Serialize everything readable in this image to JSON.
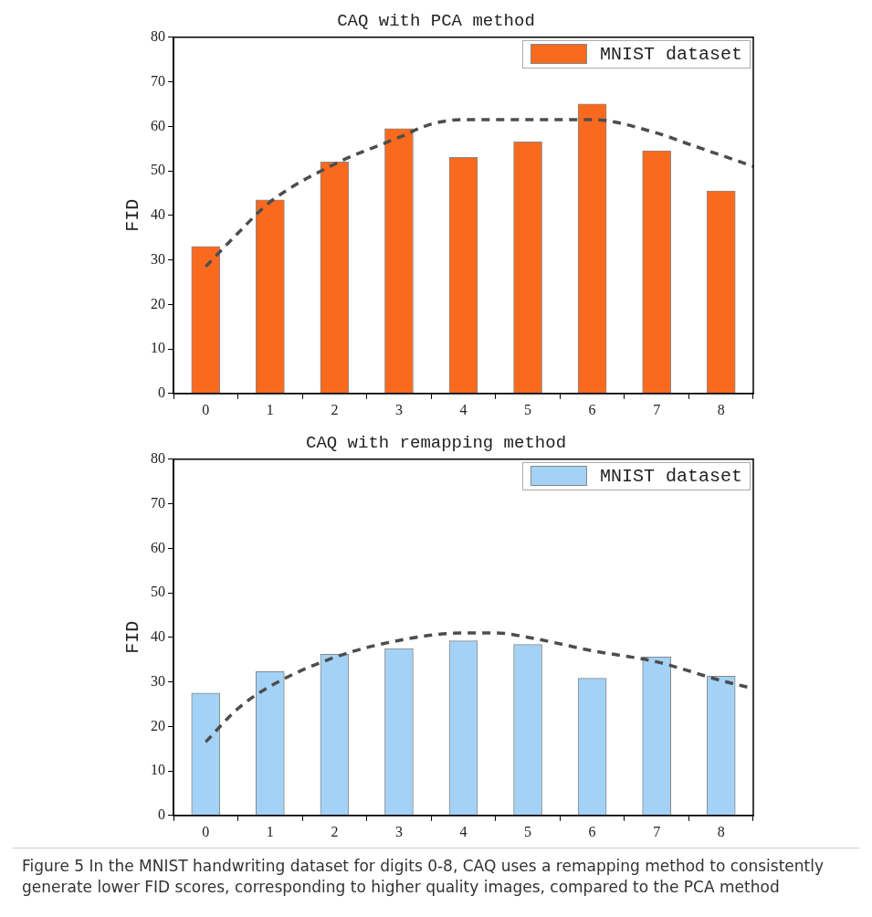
{
  "chart_data": [
    {
      "type": "bar",
      "title": "CAQ with PCA method",
      "ylabel": "FID",
      "x": [
        0,
        1,
        2,
        3,
        4,
        5,
        6,
        7,
        8
      ],
      "xlim": [
        -0.5,
        8.5
      ],
      "xticks": [
        0,
        1,
        2,
        3,
        4,
        5,
        6,
        7,
        8
      ],
      "ylim": [
        0,
        80
      ],
      "yticks": [
        0,
        10,
        20,
        30,
        40,
        50,
        60,
        70,
        80
      ],
      "legend": "top right",
      "grid": false,
      "series": [
        {
          "name": "MNIST dataset",
          "color": "#fa6a1e",
          "values": [
            33,
            43.5,
            52,
            59.5,
            53,
            56.5,
            65,
            54.5,
            45.5
          ]
        },
        {
          "type": "line",
          "color": "#4d4d4d",
          "line_style": "dashed",
          "marker": "none",
          "x": [
            0,
            0.5,
            1,
            2,
            3,
            3.5,
            4,
            5,
            6,
            7,
            7.5,
            8,
            8.5
          ],
          "values": [
            28.5,
            36,
            43,
            51.5,
            57.5,
            60.5,
            61.5,
            61.5,
            61.5,
            58.5,
            56,
            53.5,
            51
          ]
        }
      ]
    },
    {
      "type": "bar",
      "title": "CAQ with remapping method",
      "ylabel": "FID",
      "x": [
        0,
        1,
        2,
        3,
        4,
        5,
        6,
        7,
        8
      ],
      "xlim": [
        -0.5,
        8.5
      ],
      "xticks": [
        0,
        1,
        2,
        3,
        4,
        5,
        6,
        7,
        8
      ],
      "ylim": [
        0,
        80
      ],
      "yticks": [
        0,
        10,
        20,
        30,
        40,
        50,
        60,
        70,
        80
      ],
      "legend": "top right",
      "grid": false,
      "annotations": [
        "Figure 5  In the MNIST handwriting dataset for digits 0-8, CAQ uses a remapping method to consistently generate lower FID scores, corresponding to higher quality images, compared to the PCA method"
      ],
      "series": [
        {
          "name": "MNIST dataset",
          "color": "#a3d2f6",
          "values": [
            27.5,
            32.3,
            36.2,
            37.5,
            39.2,
            38.4,
            30.8,
            35.6,
            31.3
          ]
        },
        {
          "type": "line",
          "color": "#4d4d4d",
          "line_style": "dashed",
          "marker": "none",
          "x": [
            0,
            0.5,
            1,
            2,
            3,
            4,
            4.5,
            5,
            6,
            7,
            8,
            8.5
          ],
          "values": [
            16.5,
            24,
            29,
            35.5,
            39.3,
            41,
            41,
            40,
            37,
            34.5,
            30.3,
            28.5
          ]
        }
      ]
    }
  ]
}
